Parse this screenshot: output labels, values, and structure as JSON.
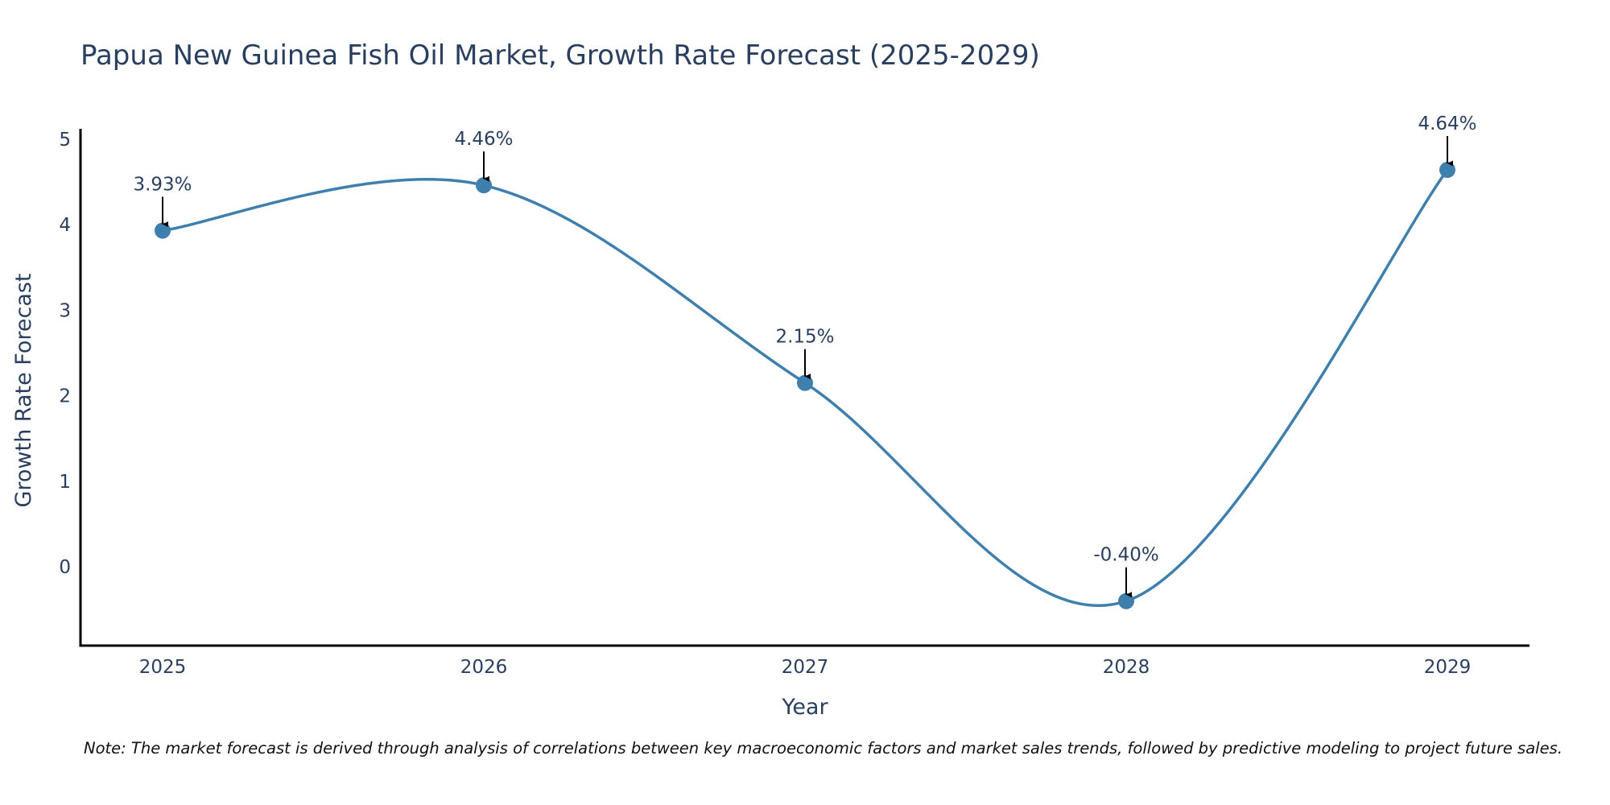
{
  "chart_data": {
    "type": "line",
    "title": "Papua New Guinea Fish Oil Market, Growth Rate Forecast (2025-2029)",
    "xlabel": "Year",
    "ylabel": "Growth Rate Forecast",
    "categories": [
      "2025",
      "2026",
      "2027",
      "2028",
      "2029"
    ],
    "values": [
      3.93,
      4.46,
      2.15,
      -0.4,
      4.64
    ],
    "data_labels": [
      "3.93%",
      "4.46%",
      "2.15%",
      "-0.40%",
      "4.64%"
    ],
    "y_ticks": [
      0,
      1,
      2,
      3,
      4,
      5
    ],
    "ylim": [
      -0.92,
      5.12
    ],
    "grid": false,
    "line_shape": "spline",
    "colors": {
      "line": "#3f7fad",
      "marker": "#3f7fad",
      "arrow": "#000000",
      "text": "#2a3f5f"
    }
  },
  "note": "Note: The market forecast is derived through analysis of correlations between key macroeconomic factors and market sales trends, followed by predictive modeling to project future sales."
}
